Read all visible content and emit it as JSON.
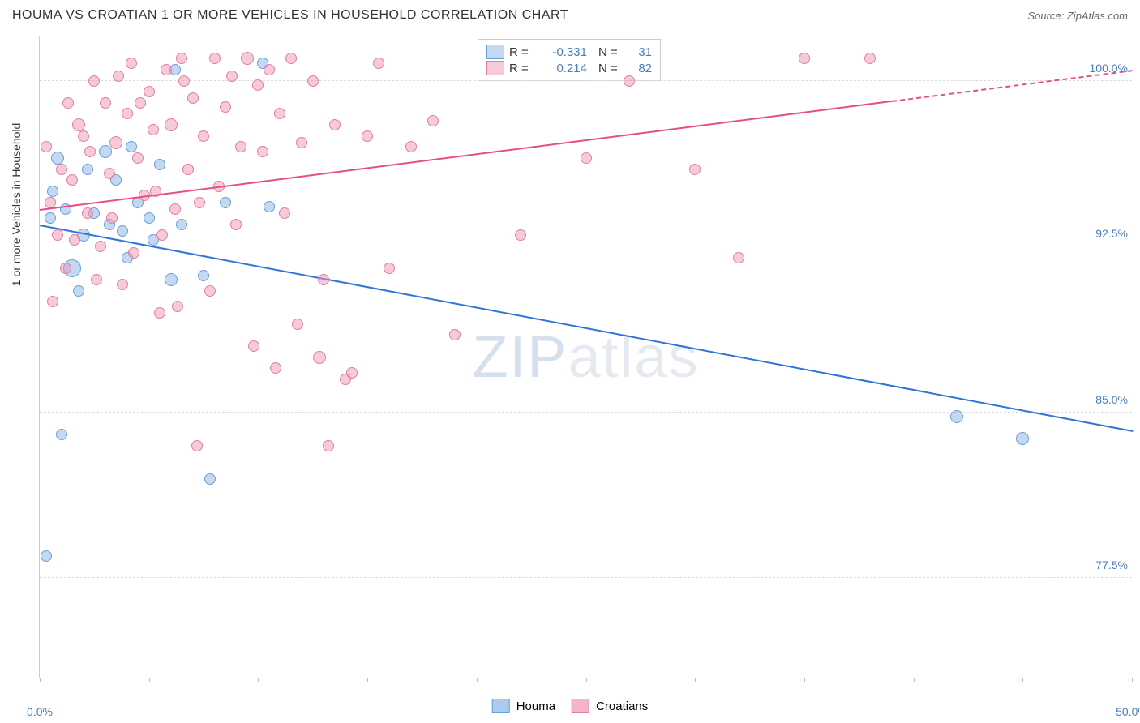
{
  "header": {
    "title": "HOUMA VS CROATIAN 1 OR MORE VEHICLES IN HOUSEHOLD CORRELATION CHART",
    "source": "Source: ZipAtlas.com"
  },
  "chart": {
    "type": "scatter",
    "ylabel": "1 or more Vehicles in Household",
    "xlim": [
      0,
      50
    ],
    "ylim": [
      73,
      102
    ],
    "xtick_positions": [
      0,
      5,
      10,
      15,
      20,
      25,
      30,
      35,
      40,
      45,
      50
    ],
    "xtick_labels": {
      "0": "0.0%",
      "50": "50.0%"
    },
    "xtick_label_color": "#4a7ebb",
    "ytick_values": [
      77.5,
      85.0,
      92.5,
      100.0
    ],
    "ytick_labels": [
      "77.5%",
      "85.0%",
      "92.5%",
      "100.0%"
    ],
    "ytick_color": "#4a7ebb",
    "grid_color": "#dddddd",
    "background_color": "#ffffff",
    "watermark": {
      "text_a": "ZIP",
      "text_b": "atlas"
    },
    "series": [
      {
        "name": "Houma",
        "fill": "rgba(135, 180, 230, 0.5)",
        "stroke": "#6a9fd4",
        "R": "-0.331",
        "N": "31",
        "trend": {
          "x1": 0,
          "y1": 93.5,
          "x2": 50,
          "y2": 84.2,
          "color": "#2e75d6",
          "solid_end_x": 50
        },
        "points": [
          {
            "x": 0.5,
            "y": 93.8,
            "r": 7
          },
          {
            "x": 1.2,
            "y": 94.2,
            "r": 7
          },
          {
            "x": 0.8,
            "y": 96.5,
            "r": 8
          },
          {
            "x": 0.3,
            "y": 78.5,
            "r": 7
          },
          {
            "x": 1.0,
            "y": 84.0,
            "r": 7
          },
          {
            "x": 2.5,
            "y": 94.0,
            "r": 7
          },
          {
            "x": 3.0,
            "y": 96.8,
            "r": 8
          },
          {
            "x": 3.2,
            "y": 93.5,
            "r": 7
          },
          {
            "x": 3.8,
            "y": 93.2,
            "r": 7
          },
          {
            "x": 4.5,
            "y": 94.5,
            "r": 7
          },
          {
            "x": 5.0,
            "y": 93.8,
            "r": 7
          },
          {
            "x": 5.5,
            "y": 96.2,
            "r": 7
          },
          {
            "x": 6.0,
            "y": 91.0,
            "r": 8
          },
          {
            "x": 6.2,
            "y": 100.5,
            "r": 7
          },
          {
            "x": 7.5,
            "y": 91.2,
            "r": 7
          },
          {
            "x": 7.8,
            "y": 82.0,
            "r": 7
          },
          {
            "x": 8.5,
            "y": 94.5,
            "r": 7
          },
          {
            "x": 1.5,
            "y": 91.5,
            "r": 11
          },
          {
            "x": 2.0,
            "y": 93.0,
            "r": 8
          },
          {
            "x": 10.2,
            "y": 100.8,
            "r": 7
          },
          {
            "x": 10.5,
            "y": 94.3,
            "r": 7
          },
          {
            "x": 5.2,
            "y": 92.8,
            "r": 7
          },
          {
            "x": 6.5,
            "y": 93.5,
            "r": 7
          },
          {
            "x": 4.0,
            "y": 92.0,
            "r": 7
          },
          {
            "x": 42.0,
            "y": 84.8,
            "r": 8
          },
          {
            "x": 45.0,
            "y": 83.8,
            "r": 8
          },
          {
            "x": 2.2,
            "y": 96.0,
            "r": 7
          },
          {
            "x": 3.5,
            "y": 95.5,
            "r": 7
          },
          {
            "x": 1.8,
            "y": 90.5,
            "r": 7
          },
          {
            "x": 0.6,
            "y": 95.0,
            "r": 7
          },
          {
            "x": 4.2,
            "y": 97.0,
            "r": 7
          }
        ]
      },
      {
        "name": "Croatians",
        "fill": "rgba(240, 150, 180, 0.5)",
        "stroke": "#e07fa0",
        "R": "0.214",
        "N": "82",
        "trend": {
          "x1": 0,
          "y1": 94.2,
          "x2": 50,
          "y2": 100.5,
          "color": "#e84c88",
          "solid_end_x": 39
        },
        "points": [
          {
            "x": 0.5,
            "y": 94.5,
            "r": 7
          },
          {
            "x": 0.8,
            "y": 93.0,
            "r": 7
          },
          {
            "x": 1.0,
            "y": 96.0,
            "r": 7
          },
          {
            "x": 1.2,
            "y": 91.5,
            "r": 7
          },
          {
            "x": 1.5,
            "y": 95.5,
            "r": 7
          },
          {
            "x": 1.8,
            "y": 98.0,
            "r": 8
          },
          {
            "x": 2.0,
            "y": 97.5,
            "r": 7
          },
          {
            "x": 2.2,
            "y": 94.0,
            "r": 7
          },
          {
            "x": 2.5,
            "y": 100.0,
            "r": 7
          },
          {
            "x": 2.8,
            "y": 92.5,
            "r": 7
          },
          {
            "x": 3.0,
            "y": 99.0,
            "r": 7
          },
          {
            "x": 3.2,
            "y": 95.8,
            "r": 7
          },
          {
            "x": 3.5,
            "y": 97.2,
            "r": 8
          },
          {
            "x": 3.8,
            "y": 90.8,
            "r": 7
          },
          {
            "x": 4.0,
            "y": 98.5,
            "r": 7
          },
          {
            "x": 4.2,
            "y": 100.8,
            "r": 7
          },
          {
            "x": 4.5,
            "y": 96.5,
            "r": 7
          },
          {
            "x": 4.8,
            "y": 94.8,
            "r": 7
          },
          {
            "x": 5.0,
            "y": 99.5,
            "r": 7
          },
          {
            "x": 5.2,
            "y": 97.8,
            "r": 7
          },
          {
            "x": 5.5,
            "y": 89.5,
            "r": 7
          },
          {
            "x": 5.8,
            "y": 100.5,
            "r": 7
          },
          {
            "x": 6.0,
            "y": 98.0,
            "r": 8
          },
          {
            "x": 6.2,
            "y": 94.2,
            "r": 7
          },
          {
            "x": 6.5,
            "y": 101.0,
            "r": 7
          },
          {
            "x": 6.8,
            "y": 96.0,
            "r": 7
          },
          {
            "x": 7.0,
            "y": 99.2,
            "r": 7
          },
          {
            "x": 7.2,
            "y": 83.5,
            "r": 7
          },
          {
            "x": 7.5,
            "y": 97.5,
            "r": 7
          },
          {
            "x": 7.8,
            "y": 90.5,
            "r": 7
          },
          {
            "x": 8.0,
            "y": 101.0,
            "r": 7
          },
          {
            "x": 8.2,
            "y": 95.2,
            "r": 7
          },
          {
            "x": 8.5,
            "y": 98.8,
            "r": 7
          },
          {
            "x": 8.8,
            "y": 100.2,
            "r": 7
          },
          {
            "x": 9.0,
            "y": 93.5,
            "r": 7
          },
          {
            "x": 9.2,
            "y": 97.0,
            "r": 7
          },
          {
            "x": 9.5,
            "y": 101.0,
            "r": 8
          },
          {
            "x": 9.8,
            "y": 88.0,
            "r": 7
          },
          {
            "x": 10.0,
            "y": 99.8,
            "r": 7
          },
          {
            "x": 10.2,
            "y": 96.8,
            "r": 7
          },
          {
            "x": 10.5,
            "y": 100.5,
            "r": 7
          },
          {
            "x": 10.8,
            "y": 87.0,
            "r": 7
          },
          {
            "x": 11.0,
            "y": 98.5,
            "r": 7
          },
          {
            "x": 11.2,
            "y": 94.0,
            "r": 7
          },
          {
            "x": 11.5,
            "y": 101.0,
            "r": 7
          },
          {
            "x": 11.8,
            "y": 89.0,
            "r": 7
          },
          {
            "x": 12.0,
            "y": 97.2,
            "r": 7
          },
          {
            "x": 12.5,
            "y": 100.0,
            "r": 7
          },
          {
            "x": 12.8,
            "y": 87.5,
            "r": 8
          },
          {
            "x": 13.0,
            "y": 91.0,
            "r": 7
          },
          {
            "x": 13.5,
            "y": 98.0,
            "r": 7
          },
          {
            "x": 14.0,
            "y": 86.5,
            "r": 7
          },
          {
            "x": 14.3,
            "y": 86.8,
            "r": 7
          },
          {
            "x": 15.0,
            "y": 97.5,
            "r": 7
          },
          {
            "x": 15.5,
            "y": 100.8,
            "r": 7
          },
          {
            "x": 16.0,
            "y": 91.5,
            "r": 7
          },
          {
            "x": 17.0,
            "y": 97.0,
            "r": 7
          },
          {
            "x": 18.0,
            "y": 98.2,
            "r": 7
          },
          {
            "x": 19.0,
            "y": 88.5,
            "r": 7
          },
          {
            "x": 22.0,
            "y": 93.0,
            "r": 7
          },
          {
            "x": 25.0,
            "y": 96.5,
            "r": 7
          },
          {
            "x": 27.0,
            "y": 100.0,
            "r": 7
          },
          {
            "x": 30.0,
            "y": 96.0,
            "r": 7
          },
          {
            "x": 32.0,
            "y": 92.0,
            "r": 7
          },
          {
            "x": 35.0,
            "y": 101.0,
            "r": 7
          },
          {
            "x": 38.0,
            "y": 101.0,
            "r": 7
          },
          {
            "x": 0.3,
            "y": 97.0,
            "r": 7
          },
          {
            "x": 0.6,
            "y": 90.0,
            "r": 7
          },
          {
            "x": 1.3,
            "y": 99.0,
            "r": 7
          },
          {
            "x": 1.6,
            "y": 92.8,
            "r": 7
          },
          {
            "x": 2.3,
            "y": 96.8,
            "r": 7
          },
          {
            "x": 2.6,
            "y": 91.0,
            "r": 7
          },
          {
            "x": 3.3,
            "y": 93.8,
            "r": 7
          },
          {
            "x": 3.6,
            "y": 100.2,
            "r": 7
          },
          {
            "x": 4.3,
            "y": 92.2,
            "r": 7
          },
          {
            "x": 4.6,
            "y": 99.0,
            "r": 7
          },
          {
            "x": 5.3,
            "y": 95.0,
            "r": 7
          },
          {
            "x": 5.6,
            "y": 93.0,
            "r": 7
          },
          {
            "x": 6.3,
            "y": 89.8,
            "r": 7
          },
          {
            "x": 6.6,
            "y": 100.0,
            "r": 7
          },
          {
            "x": 7.3,
            "y": 94.5,
            "r": 7
          },
          {
            "x": 13.2,
            "y": 83.5,
            "r": 7
          }
        ]
      }
    ]
  },
  "legend": {
    "items": [
      {
        "label": "Houma",
        "fill": "rgba(135, 180, 230, 0.7)",
        "stroke": "#6a9fd4"
      },
      {
        "label": "Croatians",
        "fill": "rgba(240, 150, 180, 0.7)",
        "stroke": "#e07fa0"
      }
    ]
  }
}
